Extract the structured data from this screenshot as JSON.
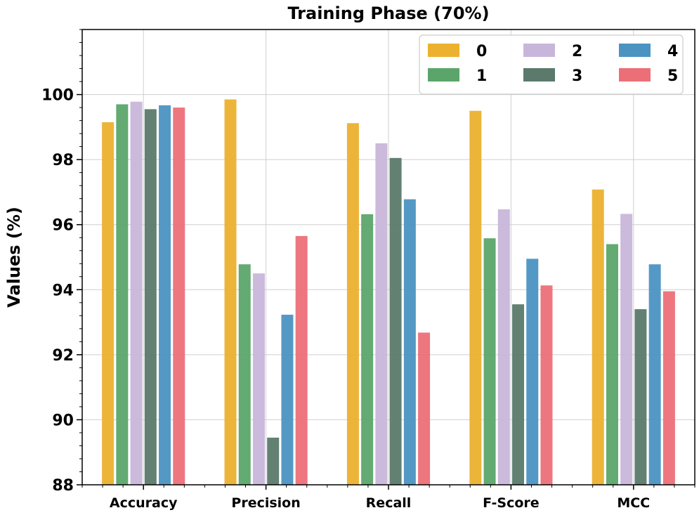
{
  "chart_data": {
    "type": "bar",
    "title": "Training Phase (70%)",
    "xlabel": "",
    "ylabel": "Values (%)",
    "ylim": [
      88,
      102
    ],
    "yticks": [
      88,
      90,
      92,
      94,
      96,
      98,
      100
    ],
    "grid": true,
    "legend_position": "top-right",
    "categories": [
      "Accuracy",
      "Precision",
      "Recall",
      "F-Score",
      "MCC"
    ],
    "series": [
      {
        "name": "0",
        "color": "#ebb12f",
        "values": [
          99.15,
          99.85,
          99.12,
          99.5,
          97.08
        ]
      },
      {
        "name": "1",
        "color": "#5ba56b",
        "values": [
          99.7,
          94.78,
          96.32,
          95.58,
          95.4
        ]
      },
      {
        "name": "2",
        "color": "#c8b6da",
        "values": [
          99.78,
          94.5,
          98.5,
          96.47,
          96.33
        ]
      },
      {
        "name": "3",
        "color": "#5b7a6c",
        "values": [
          99.55,
          89.45,
          98.05,
          93.55,
          93.4
        ]
      },
      {
        "name": "4",
        "color": "#4b94c2",
        "values": [
          99.67,
          93.23,
          96.78,
          94.95,
          94.78
        ]
      },
      {
        "name": "5",
        "color": "#ec6f78",
        "values": [
          99.6,
          95.65,
          92.68,
          94.13,
          93.95
        ]
      }
    ]
  }
}
